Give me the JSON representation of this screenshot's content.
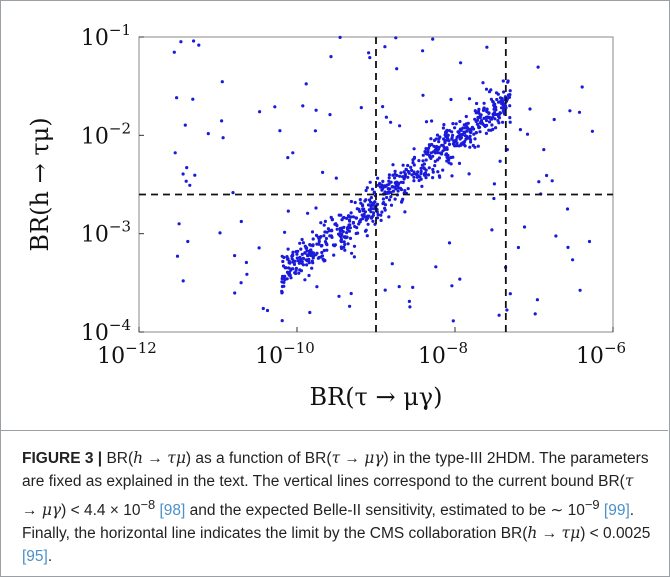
{
  "chart_data": {
    "type": "scatter",
    "xscale": "log",
    "yscale": "log",
    "xlim": [
      1e-12,
      1e-06
    ],
    "ylim": [
      0.0001,
      0.1
    ],
    "x_ticks": [
      {
        "base": "10",
        "exp": "−12"
      },
      {
        "base": "10",
        "exp": "−10"
      },
      {
        "base": "10",
        "exp": "−8"
      },
      {
        "base": "10",
        "exp": "−6"
      }
    ],
    "y_ticks": [
      {
        "base": "10",
        "exp": "−4"
      },
      {
        "base": "10",
        "exp": "−3"
      },
      {
        "base": "10",
        "exp": "−2"
      },
      {
        "base": "10",
        "exp": "−1"
      }
    ],
    "xlabel": "BR(τ → μγ)",
    "ylabel": "BR(h → τμ)",
    "vertical_lines": [
      1e-09,
      4.4e-08
    ],
    "horizontal_lines": [
      0.0025
    ],
    "point_color": "#1a1adb",
    "band": {
      "description_points": [
        [
          1e-10,
          0.0005
        ],
        [
          3e-10,
          0.0015
        ],
        [
          1e-09,
          0.004
        ],
        [
          3e-09,
          0.012
        ],
        [
          1e-08,
          0.03
        ],
        [
          3e-08,
          0.07
        ],
        [
          6e-08,
          0.1
        ]
      ]
    }
  },
  "caption": {
    "label": "FIGURE 3 |",
    "text_parts": [
      {
        "t": " BR(",
        "c": "n"
      },
      {
        "t": "h",
        "c": "i"
      },
      {
        "t": " → ",
        "c": "n"
      },
      {
        "t": "τμ",
        "c": "i"
      },
      {
        "t": ") as a function of BR(",
        "c": "n"
      },
      {
        "t": "τ",
        "c": "i"
      },
      {
        "t": " → ",
        "c": "n"
      },
      {
        "t": "μγ",
        "c": "i"
      },
      {
        "t": ") in the type-III 2HDM. The parameters are fixed as explained in the text. The vertical lines correspond to the current bound BR(",
        "c": "n"
      },
      {
        "t": "τ",
        "c": "i"
      },
      {
        "t": " → ",
        "c": "n"
      },
      {
        "t": "μγ",
        "c": "i"
      },
      {
        "t": ") < 4.4 × 10",
        "c": "n"
      },
      {
        "t": "−8",
        "c": "sup"
      },
      {
        "t": " ",
        "c": "n"
      },
      {
        "t": "[98]",
        "c": "ref"
      },
      {
        "t": " and the expected Belle-II sensitivity, estimated to be ∼ 10",
        "c": "n"
      },
      {
        "t": "−9",
        "c": "sup"
      },
      {
        "t": " ",
        "c": "n"
      },
      {
        "t": "[99]",
        "c": "ref"
      },
      {
        "t": ". Finally, the horizontal line indicates the limit by the CMS collaboration BR(",
        "c": "n"
      },
      {
        "t": "h",
        "c": "i"
      },
      {
        "t": " → ",
        "c": "n"
      },
      {
        "t": "τμ",
        "c": "i"
      },
      {
        "t": ") < 0.0025 ",
        "c": "n"
      },
      {
        "t": "[95]",
        "c": "ref"
      },
      {
        "t": ".",
        "c": "n"
      }
    ]
  }
}
